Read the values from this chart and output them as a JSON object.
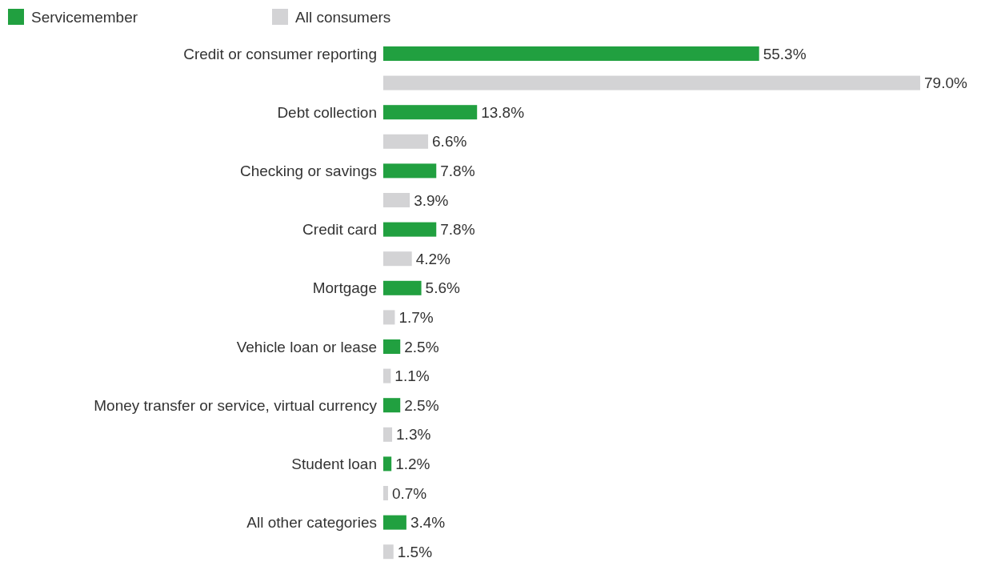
{
  "chart_data": {
    "type": "bar",
    "orientation": "horizontal",
    "legend": "top left",
    "categories": [
      "Credit or consumer reporting",
      "Debt collection",
      "Checking or savings",
      "Credit card",
      "Mortgage",
      "Vehicle loan or lease",
      "Money transfer or service, virtual currency",
      "Student loan",
      "All other categories"
    ],
    "series": [
      {
        "name": "Servicemember",
        "color": "#21a040",
        "values": [
          55.3,
          13.8,
          7.8,
          7.8,
          5.6,
          2.5,
          2.5,
          1.2,
          3.4
        ],
        "value_labels": [
          "55.3%",
          "13.8%",
          "7.8%",
          "7.8%",
          "5.6%",
          "2.5%",
          "2.5%",
          "1.2%",
          "3.4%"
        ]
      },
      {
        "name": "All consumers",
        "color": "#d3d3d5",
        "values": [
          79.0,
          6.6,
          3.9,
          4.2,
          1.7,
          1.1,
          1.3,
          0.7,
          1.5
        ],
        "value_labels": [
          "79.0%",
          "6.6%",
          "3.9%",
          "4.2%",
          "1.7%",
          "1.1%",
          "1.3%",
          "0.7%",
          "1.5%"
        ]
      }
    ]
  }
}
